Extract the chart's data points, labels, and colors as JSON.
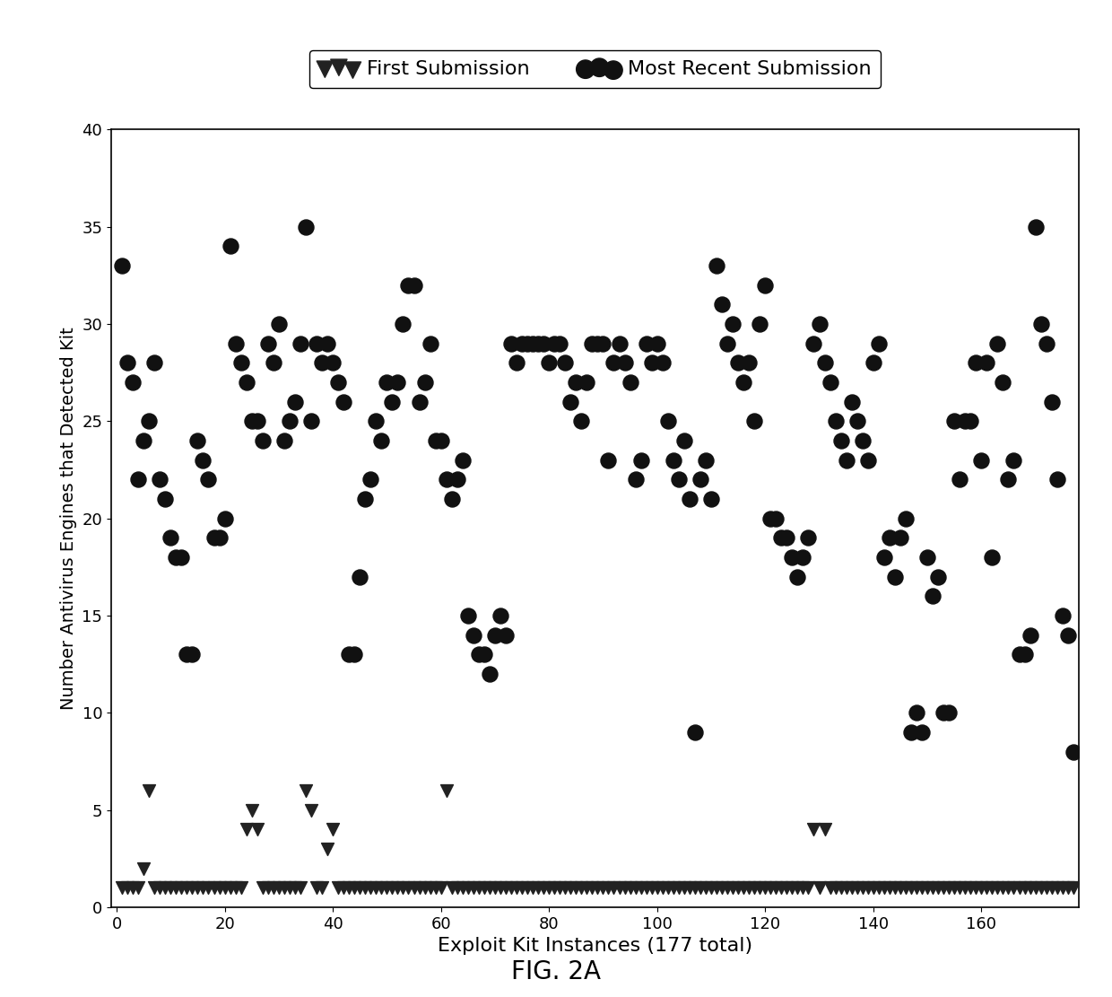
{
  "title": "",
  "xlabel": "Exploit Kit Instances (177 total)",
  "ylabel": "Number Antivirus Engines that Detected Kit",
  "fig_caption": "FIG. 2A",
  "xlim": [
    -1,
    178
  ],
  "ylim": [
    0,
    40
  ],
  "xticks": [
    0,
    20,
    40,
    60,
    80,
    100,
    120,
    140,
    160
  ],
  "yticks": [
    0,
    5,
    10,
    15,
    20,
    25,
    30,
    35,
    40
  ],
  "legend_label_first": "First Submission",
  "legend_label_recent": "Most Recent Submission",
  "bg_color": "#ffffff",
  "dot_color": "#111111",
  "triangle_color": "#222222",
  "recent_x": [
    1,
    2,
    3,
    4,
    5,
    6,
    7,
    8,
    9,
    10,
    11,
    12,
    13,
    14,
    15,
    16,
    17,
    18,
    19,
    20,
    21,
    22,
    23,
    24,
    25,
    26,
    27,
    28,
    29,
    30,
    31,
    32,
    33,
    34,
    35,
    36,
    37,
    38,
    39,
    40,
    41,
    42,
    43,
    44,
    45,
    46,
    47,
    48,
    49,
    50,
    51,
    52,
    53,
    54,
    55,
    56,
    57,
    58,
    59,
    60,
    61,
    62,
    63,
    64,
    65,
    66,
    67,
    68,
    69,
    70,
    71,
    72,
    73,
    74,
    75,
    76,
    77,
    78,
    79,
    80,
    81,
    82,
    83,
    84,
    85,
    86,
    87,
    88,
    89,
    90,
    91,
    92,
    93,
    94,
    95,
    96,
    97,
    98,
    99,
    100,
    101,
    102,
    103,
    104,
    105,
    106,
    107,
    108,
    109,
    110,
    111,
    112,
    113,
    114,
    115,
    116,
    117,
    118,
    119,
    120,
    121,
    122,
    123,
    124,
    125,
    126,
    127,
    128,
    129,
    130,
    131,
    132,
    133,
    134,
    135,
    136,
    137,
    138,
    139,
    140,
    141,
    142,
    143,
    144,
    145,
    146,
    147,
    148,
    149,
    150,
    151,
    152,
    153,
    154,
    155,
    156,
    157,
    158,
    159,
    160,
    161,
    162,
    163,
    164,
    165,
    166,
    167,
    168,
    169,
    170,
    171,
    172,
    173,
    174,
    175,
    176,
    177
  ],
  "recent_y": [
    33,
    28,
    27,
    22,
    24,
    25,
    28,
    22,
    21,
    19,
    18,
    18,
    13,
    13,
    24,
    23,
    22,
    19,
    19,
    20,
    34,
    29,
    28,
    27,
    25,
    25,
    24,
    29,
    28,
    30,
    24,
    25,
    26,
    29,
    35,
    25,
    29,
    28,
    29,
    28,
    27,
    26,
    13,
    13,
    17,
    21,
    22,
    25,
    24,
    27,
    26,
    27,
    30,
    32,
    32,
    26,
    27,
    29,
    24,
    24,
    22,
    21,
    22,
    23,
    15,
    14,
    13,
    13,
    12,
    14,
    15,
    14,
    29,
    28,
    29,
    29,
    29,
    29,
    29,
    28,
    29,
    29,
    28,
    26,
    27,
    25,
    27,
    29,
    29,
    29,
    23,
    28,
    29,
    28,
    27,
    22,
    23,
    29,
    28,
    29,
    28,
    25,
    23,
    22,
    24,
    21,
    9,
    22,
    23,
    21,
    33,
    31,
    29,
    30,
    28,
    27,
    28,
    25,
    30,
    32,
    20,
    20,
    19,
    19,
    18,
    17,
    18,
    19,
    29,
    30,
    28,
    27,
    25,
    24,
    23,
    26,
    25,
    24,
    23,
    28,
    29,
    18,
    19,
    17,
    19,
    20,
    9,
    10,
    9,
    18,
    16,
    17,
    10,
    10,
    25,
    22,
    25,
    25,
    28,
    23,
    28,
    18,
    29,
    27,
    22,
    23,
    13,
    13,
    14,
    35,
    30,
    29,
    26,
    22,
    15,
    14,
    8
  ],
  "first_x": [
    1,
    2,
    3,
    4,
    5,
    6,
    7,
    8,
    9,
    10,
    11,
    12,
    13,
    14,
    15,
    16,
    17,
    18,
    19,
    20,
    21,
    22,
    23,
    24,
    25,
    26,
    27,
    28,
    29,
    30,
    31,
    32,
    33,
    34,
    35,
    36,
    37,
    38,
    39,
    40,
    41,
    42,
    43,
    44,
    45,
    46,
    47,
    48,
    49,
    50,
    51,
    52,
    53,
    54,
    55,
    56,
    57,
    58,
    59,
    60,
    61,
    62,
    63,
    64,
    65,
    66,
    67,
    68,
    69,
    70,
    71,
    72,
    73,
    74,
    75,
    76,
    77,
    78,
    79,
    80,
    81,
    82,
    83,
    84,
    85,
    86,
    87,
    88,
    89,
    90,
    91,
    92,
    93,
    94,
    95,
    96,
    97,
    98,
    99,
    100,
    101,
    102,
    103,
    104,
    105,
    106,
    107,
    108,
    109,
    110,
    111,
    112,
    113,
    114,
    115,
    116,
    117,
    118,
    119,
    120,
    121,
    122,
    123,
    124,
    125,
    126,
    127,
    128,
    129,
    130,
    131,
    132,
    133,
    134,
    135,
    136,
    137,
    138,
    139,
    140,
    141,
    142,
    143,
    144,
    145,
    146,
    147,
    148,
    149,
    150,
    151,
    152,
    153,
    154,
    155,
    156,
    157,
    158,
    159,
    160,
    161,
    162,
    163,
    164,
    165,
    166,
    167,
    168,
    169,
    170,
    171,
    172,
    173,
    174,
    175,
    176,
    177
  ],
  "first_y": [
    1,
    1,
    1,
    1,
    2,
    6,
    1,
    1,
    1,
    1,
    1,
    1,
    1,
    1,
    1,
    1,
    1,
    1,
    1,
    1,
    1,
    1,
    1,
    4,
    5,
    4,
    1,
    1,
    1,
    1,
    1,
    1,
    1,
    1,
    6,
    5,
    1,
    1,
    3,
    4,
    1,
    1,
    1,
    1,
    1,
    1,
    1,
    1,
    1,
    1,
    1,
    1,
    1,
    1,
    1,
    1,
    1,
    1,
    1,
    1,
    6,
    1,
    1,
    1,
    1,
    1,
    1,
    1,
    1,
    1,
    1,
    1,
    1,
    1,
    1,
    1,
    1,
    1,
    1,
    1,
    1,
    1,
    1,
    1,
    1,
    1,
    1,
    1,
    1,
    1,
    1,
    1,
    1,
    1,
    1,
    1,
    1,
    1,
    1,
    1,
    1,
    1,
    1,
    1,
    1,
    1,
    1,
    1,
    1,
    1,
    1,
    1,
    1,
    1,
    1,
    1,
    1,
    1,
    1,
    1,
    1,
    1,
    1,
    1,
    1,
    1,
    1,
    1,
    4,
    1,
    4,
    1,
    1,
    1,
    1,
    1,
    1,
    1,
    1,
    1,
    1,
    1,
    1,
    1,
    1,
    1,
    1,
    1,
    1,
    1,
    1,
    1,
    1,
    1,
    1,
    1,
    1,
    1,
    1,
    1,
    1,
    1,
    1,
    1,
    1,
    1,
    1,
    1,
    1,
    1,
    1,
    1,
    1,
    1,
    1,
    1,
    1
  ]
}
